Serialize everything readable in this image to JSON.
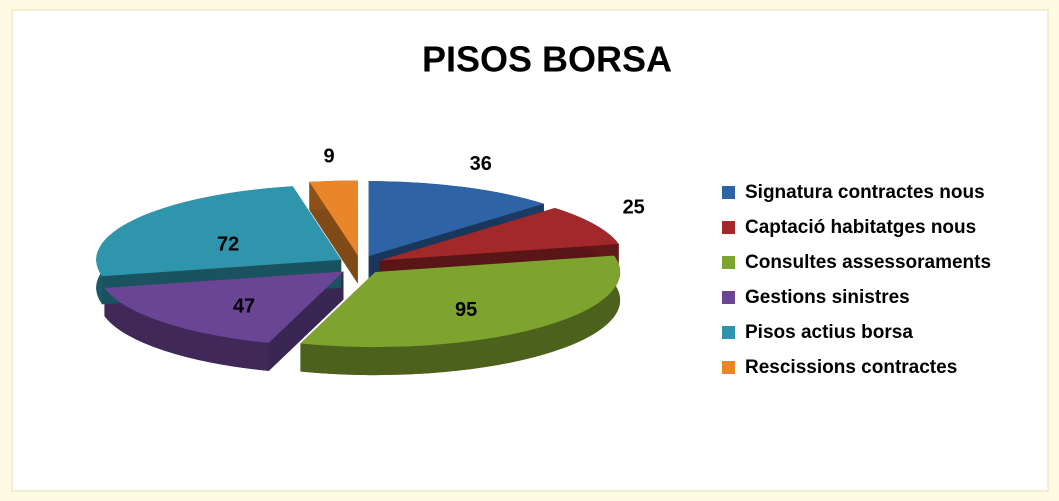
{
  "chart_data": {
    "type": "pie",
    "title": "PISOS BORSA",
    "categories": [
      "Signatura contractes nous",
      "Captació habitatges nous",
      "Consultes assessoraments",
      "Gestions sinistres",
      "Pisos actius borsa",
      "Rescissions contractes"
    ],
    "values": [
      36,
      25,
      95,
      47,
      72,
      9
    ],
    "colors": [
      "#2e63a6",
      "#a3282a",
      "#7ea32f",
      "#6a4595",
      "#2f95ad",
      "#e9862a"
    ],
    "legend": "right"
  }
}
